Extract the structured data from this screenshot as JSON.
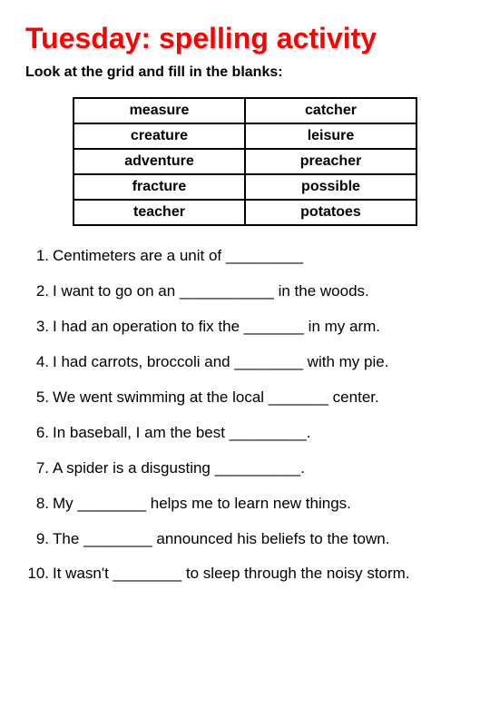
{
  "title": "Tuesday: spelling activity",
  "subtitle": "Look at the grid and fill in the blanks:",
  "grid": {
    "rows": [
      {
        "left_pre": "mea",
        "left_suf": "sure",
        "right_pre": "cat",
        "right_suf": "cher"
      },
      {
        "left_pre": "crea",
        "left_suf": "ture",
        "right_pre": "lei",
        "right_suf": "sure"
      },
      {
        "left_pre": "adven",
        "left_suf": "ture",
        "right_pre": "prea",
        "right_suf": "cher"
      },
      {
        "left_pre": "frac",
        "left_suf": "ture",
        "right_pre": "possible",
        "right_suf": ""
      },
      {
        "left_pre": "tea",
        "left_suf": "cher",
        "right_pre": "potatoes",
        "right_suf": ""
      }
    ]
  },
  "questions": [
    {
      "n": "1.",
      "text": "Centimeters are a unit of _________"
    },
    {
      "n": "2.",
      "text": "I want to go on an ___________ in the woods."
    },
    {
      "n": "3.",
      "text": "I had an operation to fix the _______ in my arm."
    },
    {
      "n": "4.",
      "text": "I had carrots, broccoli and ________ with my pie."
    },
    {
      "n": "5.",
      "text": "We went swimming at the local _______ center."
    },
    {
      "n": "6.",
      "text": "In baseball, I am the best _________."
    },
    {
      "n": "7.",
      "text": "A spider is a disgusting __________."
    },
    {
      "n": "8.",
      "text": "My ________ helps me to learn new things."
    },
    {
      "n": "9.",
      "text": "The ________ announced his beliefs to the town."
    },
    {
      "n": "10.",
      "text": "It wasn't ________ to sleep through the noisy storm."
    }
  ]
}
